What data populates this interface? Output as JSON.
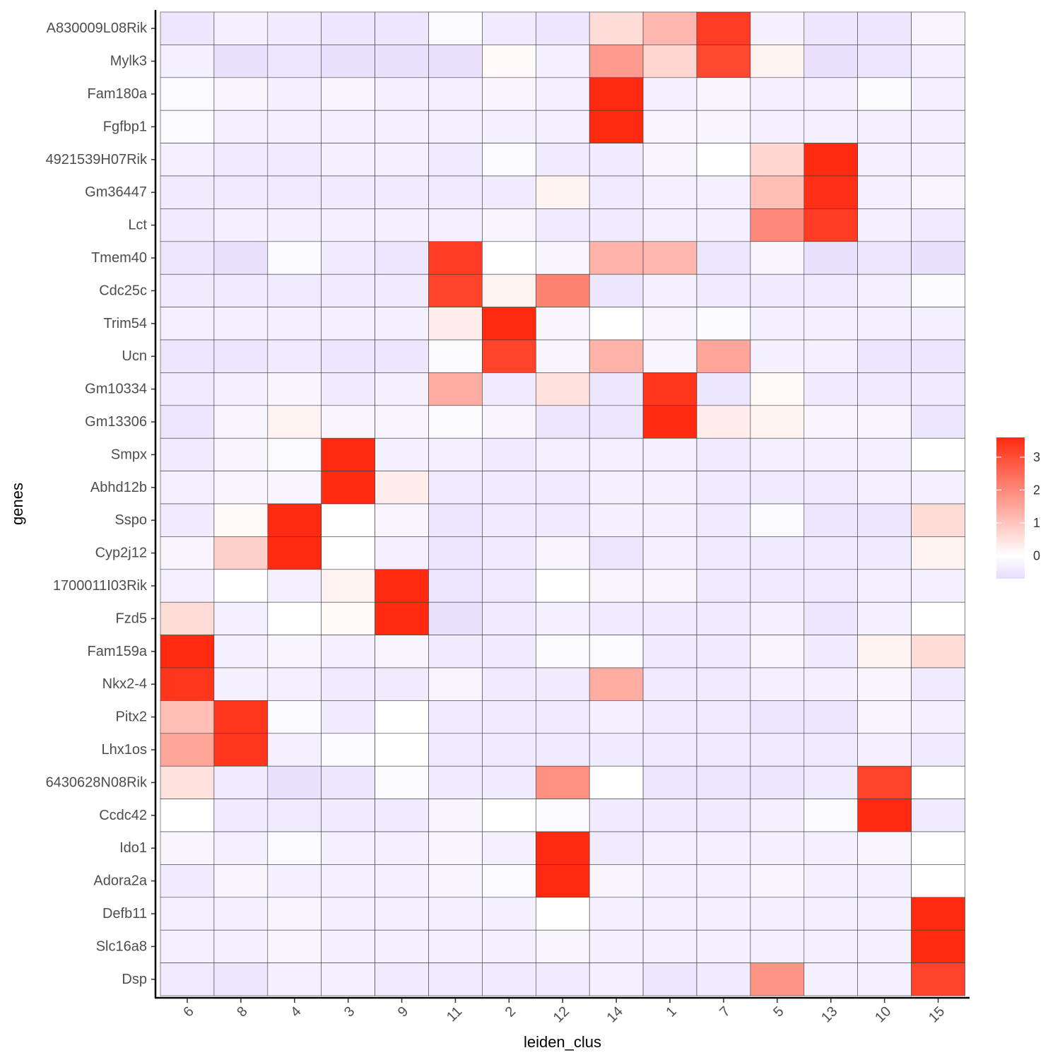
{
  "chart_data": {
    "type": "heatmap",
    "title": "",
    "xlabel": "leiden_clus",
    "ylabel": "genes",
    "x_categories": [
      "6",
      "8",
      "4",
      "3",
      "9",
      "11",
      "2",
      "12",
      "14",
      "1",
      "7",
      "5",
      "13",
      "10",
      "15"
    ],
    "y_categories": [
      "A830009L08Rik",
      "Mylk3",
      "Fam180a",
      "Fgfbp1",
      "4921539H07Rik",
      "Gm36447",
      "Lct",
      "Tmem40",
      "Cdc25c",
      "Trim54",
      "Ucn",
      "Gm10334",
      "Gm13306",
      "Smpx",
      "Abhd12b",
      "Sspo",
      "Cyp2j12",
      "1700011I03Rik",
      "Fzd5",
      "Fam159a",
      "Nkx2-4",
      "Pitx2",
      "Lhx1os",
      "6430628N08Rik",
      "Ccdc42",
      "Ido1",
      "Adora2a",
      "Defb11",
      "Slc16a8",
      "Dsp"
    ],
    "values": [
      [
        -0.5,
        -0.3,
        -0.4,
        -0.5,
        -0.5,
        -0.1,
        -0.4,
        -0.5,
        0.6,
        1.2,
        3.3,
        -0.3,
        -0.5,
        -0.5,
        -0.2
      ],
      [
        -0.3,
        -0.6,
        -0.5,
        -0.6,
        -0.6,
        -0.6,
        0.1,
        -0.3,
        1.7,
        0.7,
        3.1,
        0.2,
        -0.6,
        -0.5,
        -0.3
      ],
      [
        -0.1,
        -0.2,
        -0.3,
        -0.2,
        -0.3,
        -0.3,
        -0.2,
        -0.3,
        3.6,
        -0.3,
        -0.2,
        -0.3,
        -0.3,
        -0.1,
        -0.3
      ],
      [
        -0.1,
        -0.3,
        -0.3,
        -0.3,
        -0.3,
        -0.3,
        -0.3,
        -0.3,
        3.6,
        -0.2,
        -0.2,
        -0.3,
        -0.3,
        -0.3,
        -0.3
      ],
      [
        -0.3,
        -0.4,
        -0.4,
        -0.3,
        -0.3,
        -0.4,
        -0.1,
        -0.4,
        -0.4,
        -0.2,
        0.0,
        0.7,
        3.6,
        -0.3,
        -0.3
      ],
      [
        -0.4,
        -0.4,
        -0.4,
        -0.4,
        -0.4,
        -0.4,
        -0.4,
        0.2,
        -0.4,
        -0.3,
        -0.3,
        1.1,
        3.5,
        -0.3,
        -0.2
      ],
      [
        -0.4,
        -0.3,
        -0.3,
        -0.3,
        -0.3,
        -0.3,
        -0.2,
        -0.4,
        -0.4,
        -0.3,
        -0.3,
        2.0,
        3.3,
        -0.3,
        -0.4
      ],
      [
        -0.5,
        -0.6,
        -0.1,
        -0.4,
        -0.5,
        3.3,
        0.0,
        -0.2,
        1.3,
        1.2,
        -0.5,
        -0.2,
        -0.6,
        -0.5,
        -0.6
      ],
      [
        -0.4,
        -0.4,
        -0.4,
        -0.4,
        -0.4,
        3.2,
        0.2,
        2.1,
        -0.5,
        -0.3,
        -0.4,
        -0.4,
        -0.4,
        -0.3,
        -0.1
      ],
      [
        -0.3,
        -0.3,
        -0.3,
        -0.3,
        -0.3,
        0.3,
        3.6,
        -0.2,
        0.0,
        -0.2,
        -0.1,
        -0.3,
        -0.3,
        -0.3,
        -0.3
      ],
      [
        -0.5,
        -0.5,
        -0.4,
        -0.5,
        -0.5,
        -0.1,
        3.2,
        -0.2,
        1.3,
        -0.2,
        1.5,
        -0.3,
        -0.3,
        -0.5,
        -0.5
      ],
      [
        -0.4,
        -0.3,
        -0.2,
        -0.4,
        -0.3,
        1.4,
        -0.4,
        0.5,
        -0.5,
        3.4,
        -0.5,
        0.1,
        -0.4,
        -0.4,
        -0.4
      ],
      [
        -0.5,
        -0.2,
        0.2,
        -0.2,
        -0.2,
        -0.1,
        -0.2,
        -0.5,
        -0.5,
        3.6,
        0.3,
        0.2,
        -0.2,
        -0.2,
        -0.5
      ],
      [
        -0.4,
        -0.2,
        -0.1,
        3.6,
        -0.3,
        -0.3,
        -0.4,
        -0.3,
        -0.3,
        -0.3,
        -0.4,
        -0.3,
        -0.3,
        -0.3,
        0.0
      ],
      [
        -0.3,
        -0.2,
        -0.2,
        3.6,
        0.3,
        -0.4,
        -0.4,
        -0.4,
        -0.3,
        -0.3,
        -0.4,
        -0.4,
        -0.4,
        -0.3,
        -0.3
      ],
      [
        -0.4,
        0.1,
        3.6,
        0.0,
        -0.2,
        -0.5,
        -0.4,
        -0.4,
        -0.3,
        -0.3,
        -0.4,
        -0.1,
        -0.5,
        -0.5,
        0.6
      ],
      [
        -0.2,
        0.8,
        3.6,
        0.0,
        -0.3,
        -0.5,
        -0.4,
        -0.2,
        -0.5,
        -0.3,
        -0.4,
        -0.4,
        -0.4,
        -0.4,
        0.2
      ],
      [
        -0.3,
        0.0,
        -0.3,
        0.2,
        3.6,
        -0.5,
        -0.4,
        0.0,
        -0.2,
        -0.2,
        -0.4,
        -0.4,
        -0.4,
        -0.3,
        -0.3
      ],
      [
        0.6,
        -0.3,
        0.0,
        0.1,
        3.6,
        -0.6,
        -0.4,
        -0.3,
        -0.4,
        -0.4,
        -0.4,
        -0.3,
        -0.5,
        -0.3,
        0.0
      ],
      [
        3.6,
        -0.3,
        -0.2,
        -0.3,
        -0.2,
        -0.4,
        -0.4,
        -0.1,
        -0.1,
        -0.4,
        -0.4,
        -0.2,
        -0.4,
        0.2,
        0.6
      ],
      [
        3.4,
        -0.3,
        -0.3,
        -0.4,
        -0.4,
        -0.2,
        -0.4,
        -0.4,
        1.4,
        -0.4,
        -0.4,
        -0.3,
        -0.3,
        -0.2,
        -0.4
      ],
      [
        1.1,
        3.4,
        -0.1,
        -0.4,
        0.0,
        -0.4,
        -0.4,
        -0.4,
        -0.3,
        -0.4,
        -0.4,
        -0.5,
        -0.5,
        -0.2,
        -0.3
      ],
      [
        1.5,
        3.4,
        -0.3,
        -0.1,
        0.0,
        -0.4,
        -0.4,
        -0.4,
        -0.4,
        -0.4,
        -0.4,
        -0.4,
        -0.4,
        -0.3,
        -0.4
      ],
      [
        0.5,
        -0.4,
        -0.6,
        -0.5,
        -0.1,
        -0.4,
        -0.4,
        1.9,
        0.0,
        -0.5,
        -0.5,
        -0.5,
        -0.4,
        3.2,
        0.0
      ],
      [
        0.0,
        -0.4,
        -0.4,
        -0.4,
        -0.4,
        -0.2,
        0.0,
        -0.1,
        -0.4,
        -0.4,
        -0.4,
        -0.3,
        -0.1,
        3.6,
        -0.4
      ],
      [
        -0.2,
        -0.3,
        -0.1,
        -0.3,
        -0.3,
        -0.2,
        -0.3,
        3.6,
        -0.4,
        -0.3,
        -0.3,
        -0.3,
        -0.3,
        -0.2,
        0.0
      ],
      [
        -0.4,
        -0.2,
        -0.3,
        -0.3,
        -0.3,
        -0.2,
        -0.1,
        3.6,
        -0.2,
        -0.3,
        -0.3,
        -0.2,
        -0.3,
        -0.3,
        0.0
      ],
      [
        -0.3,
        -0.3,
        -0.2,
        -0.3,
        -0.3,
        -0.3,
        -0.3,
        0.0,
        -0.3,
        -0.3,
        -0.3,
        -0.3,
        -0.3,
        -0.3,
        3.6
      ],
      [
        -0.3,
        -0.3,
        -0.2,
        -0.3,
        -0.3,
        -0.3,
        -0.3,
        -0.2,
        -0.3,
        -0.3,
        -0.3,
        -0.3,
        -0.3,
        -0.3,
        3.6
      ],
      [
        -0.4,
        -0.5,
        -0.3,
        -0.3,
        -0.4,
        -0.4,
        -0.4,
        -0.4,
        -0.3,
        -0.5,
        -0.4,
        1.8,
        -0.3,
        -0.3,
        3.2
      ]
    ],
    "color_scale": {
      "low": "#e6dcff",
      "mid": "#ffffff",
      "high": "#ff2a0f",
      "min": -0.7,
      "mid_value": 0,
      "max": 3.6
    },
    "legend": {
      "position": "right",
      "ticks": [
        0,
        1,
        2,
        3
      ]
    }
  }
}
